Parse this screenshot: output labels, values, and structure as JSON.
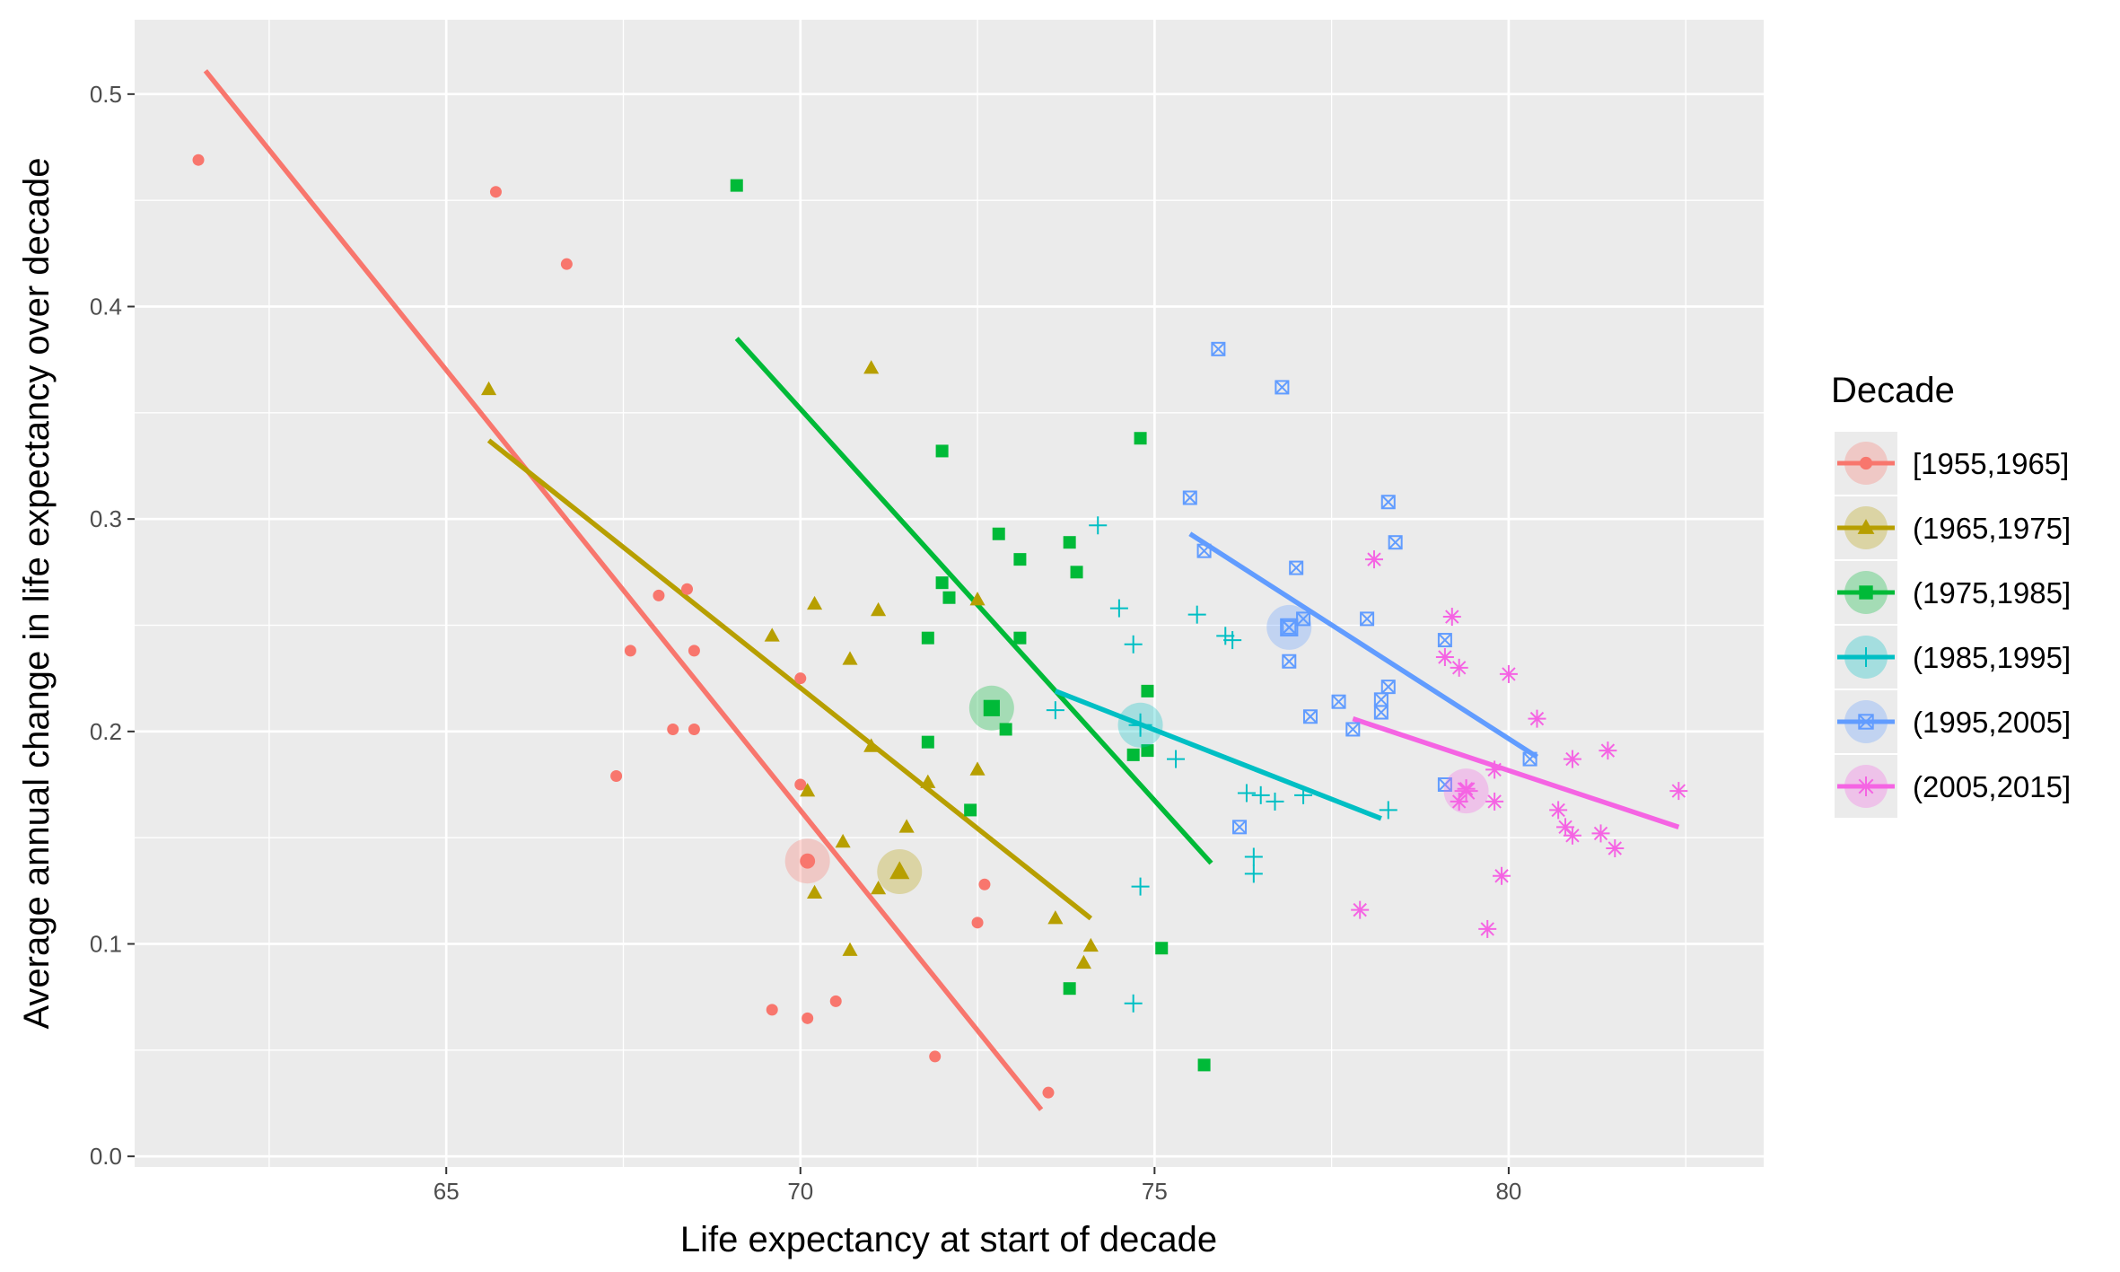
{
  "chart_data": {
    "type": "scatter",
    "title": "",
    "xlabel": "Life expectancy at start of decade",
    "ylabel": "Average annual change in life expectancy over decade",
    "xlim": [
      60.6,
      83.6
    ],
    "ylim": [
      -0.005,
      0.535
    ],
    "xticks": [
      65,
      70,
      75,
      80
    ],
    "yticks": [
      0.0,
      0.1,
      0.2,
      0.3,
      0.4,
      0.5
    ],
    "xtick_labels": [
      "65",
      "70",
      "75",
      "80"
    ],
    "ytick_labels": [
      "0.0",
      "0.1",
      "0.2",
      "0.3",
      "0.4",
      "0.5"
    ],
    "grid": true,
    "legend": {
      "title": "Decade",
      "position": "right"
    },
    "series": [
      {
        "name": "[1955,1965]",
        "color": "#F8766D",
        "marker": "circle",
        "points": [
          [
            61.5,
            0.469
          ],
          [
            65.7,
            0.454
          ],
          [
            66.7,
            0.42
          ],
          [
            68.0,
            0.264
          ],
          [
            68.4,
            0.267
          ],
          [
            67.6,
            0.238
          ],
          [
            68.5,
            0.238
          ],
          [
            68.2,
            0.201
          ],
          [
            68.5,
            0.201
          ],
          [
            67.4,
            0.179
          ],
          [
            70.0,
            0.225
          ],
          [
            70.0,
            0.175
          ],
          [
            70.1,
            0.139
          ],
          [
            72.6,
            0.128
          ],
          [
            72.5,
            0.11
          ],
          [
            69.6,
            0.069
          ],
          [
            70.1,
            0.065
          ],
          [
            70.5,
            0.073
          ],
          [
            71.9,
            0.047
          ],
          [
            73.5,
            0.03
          ]
        ],
        "mean": [
          70.1,
          0.139
        ],
        "fit": [
          [
            61.6,
            0.511
          ],
          [
            73.4,
            0.022
          ]
        ]
      },
      {
        "name": "(1965,1975]",
        "color": "#B79F00",
        "marker": "triangle",
        "points": [
          [
            65.6,
            0.361
          ],
          [
            71.0,
            0.371
          ],
          [
            69.6,
            0.245
          ],
          [
            70.2,
            0.26
          ],
          [
            71.1,
            0.257
          ],
          [
            70.7,
            0.234
          ],
          [
            72.5,
            0.262
          ],
          [
            71.0,
            0.193
          ],
          [
            70.1,
            0.172
          ],
          [
            71.8,
            0.176
          ],
          [
            72.5,
            0.182
          ],
          [
            71.5,
            0.155
          ],
          [
            70.6,
            0.148
          ],
          [
            71.4,
            0.135
          ],
          [
            71.1,
            0.126
          ],
          [
            70.2,
            0.124
          ],
          [
            70.7,
            0.097
          ],
          [
            73.6,
            0.112
          ],
          [
            74.1,
            0.099
          ],
          [
            74.0,
            0.091
          ]
        ],
        "mean": [
          71.4,
          0.134
        ],
        "fit": [
          [
            65.6,
            0.337
          ],
          [
            74.1,
            0.112
          ]
        ]
      },
      {
        "name": "(1975,1985]",
        "color": "#00BA38",
        "marker": "square",
        "points": [
          [
            69.1,
            0.457
          ],
          [
            72.0,
            0.332
          ],
          [
            74.8,
            0.338
          ],
          [
            72.8,
            0.293
          ],
          [
            73.8,
            0.289
          ],
          [
            73.1,
            0.281
          ],
          [
            73.9,
            0.275
          ],
          [
            72.0,
            0.27
          ],
          [
            72.1,
            0.263
          ],
          [
            71.8,
            0.244
          ],
          [
            73.1,
            0.244
          ],
          [
            74.9,
            0.219
          ],
          [
            72.7,
            0.211
          ],
          [
            72.9,
            0.201
          ],
          [
            71.8,
            0.195
          ],
          [
            74.9,
            0.191
          ],
          [
            74.7,
            0.189
          ],
          [
            72.4,
            0.163
          ],
          [
            75.1,
            0.098
          ],
          [
            73.8,
            0.079
          ],
          [
            75.7,
            0.043
          ]
        ],
        "mean": [
          72.7,
          0.211
        ],
        "fit": [
          [
            69.1,
            0.385
          ],
          [
            75.8,
            0.138
          ]
        ]
      },
      {
        "name": "(1985,1995]",
        "color": "#00BFC4",
        "marker": "plus",
        "points": [
          [
            74.2,
            0.297
          ],
          [
            73.6,
            0.21
          ],
          [
            74.5,
            0.258
          ],
          [
            74.7,
            0.241
          ],
          [
            75.6,
            0.255
          ],
          [
            76.0,
            0.245
          ],
          [
            76.1,
            0.243
          ],
          [
            74.8,
            0.203
          ],
          [
            75.3,
            0.187
          ],
          [
            76.3,
            0.171
          ],
          [
            76.5,
            0.17
          ],
          [
            76.7,
            0.167
          ],
          [
            77.1,
            0.17
          ],
          [
            78.3,
            0.163
          ],
          [
            76.4,
            0.141
          ],
          [
            76.4,
            0.133
          ],
          [
            74.8,
            0.127
          ],
          [
            74.7,
            0.072
          ]
        ],
        "mean": [
          74.8,
          0.203
        ],
        "fit": [
          [
            73.6,
            0.219
          ],
          [
            78.2,
            0.159
          ]
        ]
      },
      {
        "name": "(1995,2005]",
        "color": "#619CFF",
        "marker": "squarecross",
        "points": [
          [
            75.9,
            0.38
          ],
          [
            76.8,
            0.362
          ],
          [
            75.5,
            0.31
          ],
          [
            78.3,
            0.308
          ],
          [
            78.4,
            0.289
          ],
          [
            75.7,
            0.285
          ],
          [
            77.0,
            0.277
          ],
          [
            78.0,
            0.253
          ],
          [
            77.1,
            0.253
          ],
          [
            76.9,
            0.249
          ],
          [
            79.1,
            0.243
          ],
          [
            76.9,
            0.233
          ],
          [
            78.3,
            0.221
          ],
          [
            77.6,
            0.214
          ],
          [
            78.2,
            0.215
          ],
          [
            78.2,
            0.209
          ],
          [
            77.2,
            0.207
          ],
          [
            77.8,
            0.201
          ],
          [
            80.3,
            0.187
          ],
          [
            79.1,
            0.175
          ],
          [
            76.2,
            0.155
          ]
        ],
        "mean": [
          76.9,
          0.249
        ],
        "fit": [
          [
            75.5,
            0.293
          ],
          [
            80.4,
            0.188
          ]
        ]
      },
      {
        "name": "(2005,2015]",
        "color": "#F564E3",
        "marker": "asterisk",
        "points": [
          [
            78.1,
            0.281
          ],
          [
            79.2,
            0.254
          ],
          [
            79.1,
            0.235
          ],
          [
            79.3,
            0.23
          ],
          [
            80.0,
            0.227
          ],
          [
            80.4,
            0.206
          ],
          [
            79.8,
            0.182
          ],
          [
            80.9,
            0.187
          ],
          [
            81.4,
            0.191
          ],
          [
            79.4,
            0.173
          ],
          [
            79.3,
            0.167
          ],
          [
            79.8,
            0.167
          ],
          [
            82.4,
            0.172
          ],
          [
            80.7,
            0.163
          ],
          [
            80.8,
            0.155
          ],
          [
            80.9,
            0.151
          ],
          [
            81.3,
            0.152
          ],
          [
            81.5,
            0.145
          ],
          [
            79.9,
            0.132
          ],
          [
            77.9,
            0.116
          ],
          [
            79.7,
            0.107
          ]
        ],
        "mean": [
          79.4,
          0.172
        ],
        "fit": [
          [
            77.8,
            0.206
          ],
          [
            82.4,
            0.155
          ]
        ]
      }
    ]
  }
}
